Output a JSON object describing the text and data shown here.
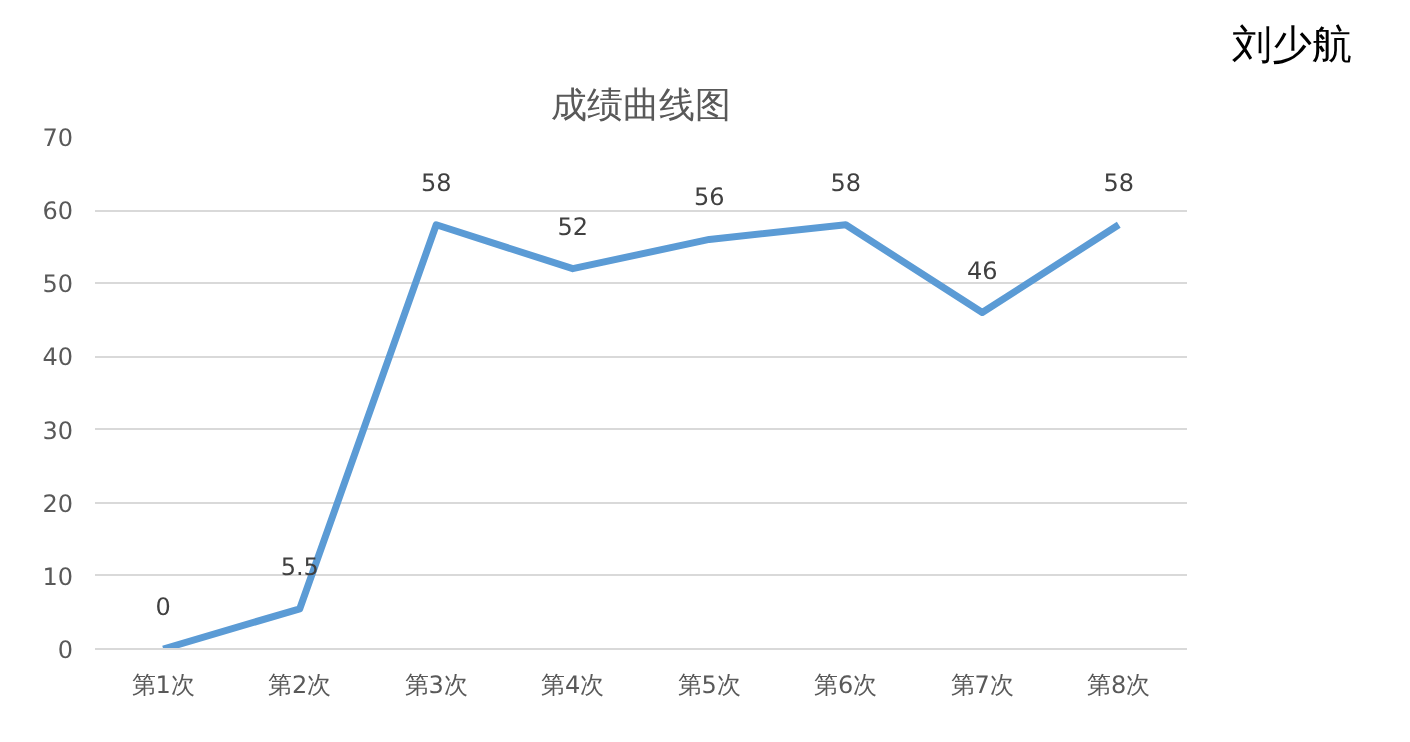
{
  "chart_data": {
    "type": "line",
    "title": "成绩曲线图",
    "categories": [
      "第1次",
      "第2次",
      "第3次",
      "第4次",
      "第5次",
      "第6次",
      "第7次",
      "第8次"
    ],
    "series": [
      {
        "color": "#5b9bd5",
        "values": [
          0,
          5.5,
          58,
          52,
          56,
          58,
          46,
          58
        ]
      }
    ],
    "ylim": [
      0,
      70
    ],
    "yticks": [
      0,
      10,
      20,
      30,
      40,
      50,
      60,
      70
    ],
    "grid": "y",
    "marker": "none",
    "line_style": "solid",
    "data_labels": true,
    "annotations": [
      "刘少航"
    ]
  }
}
